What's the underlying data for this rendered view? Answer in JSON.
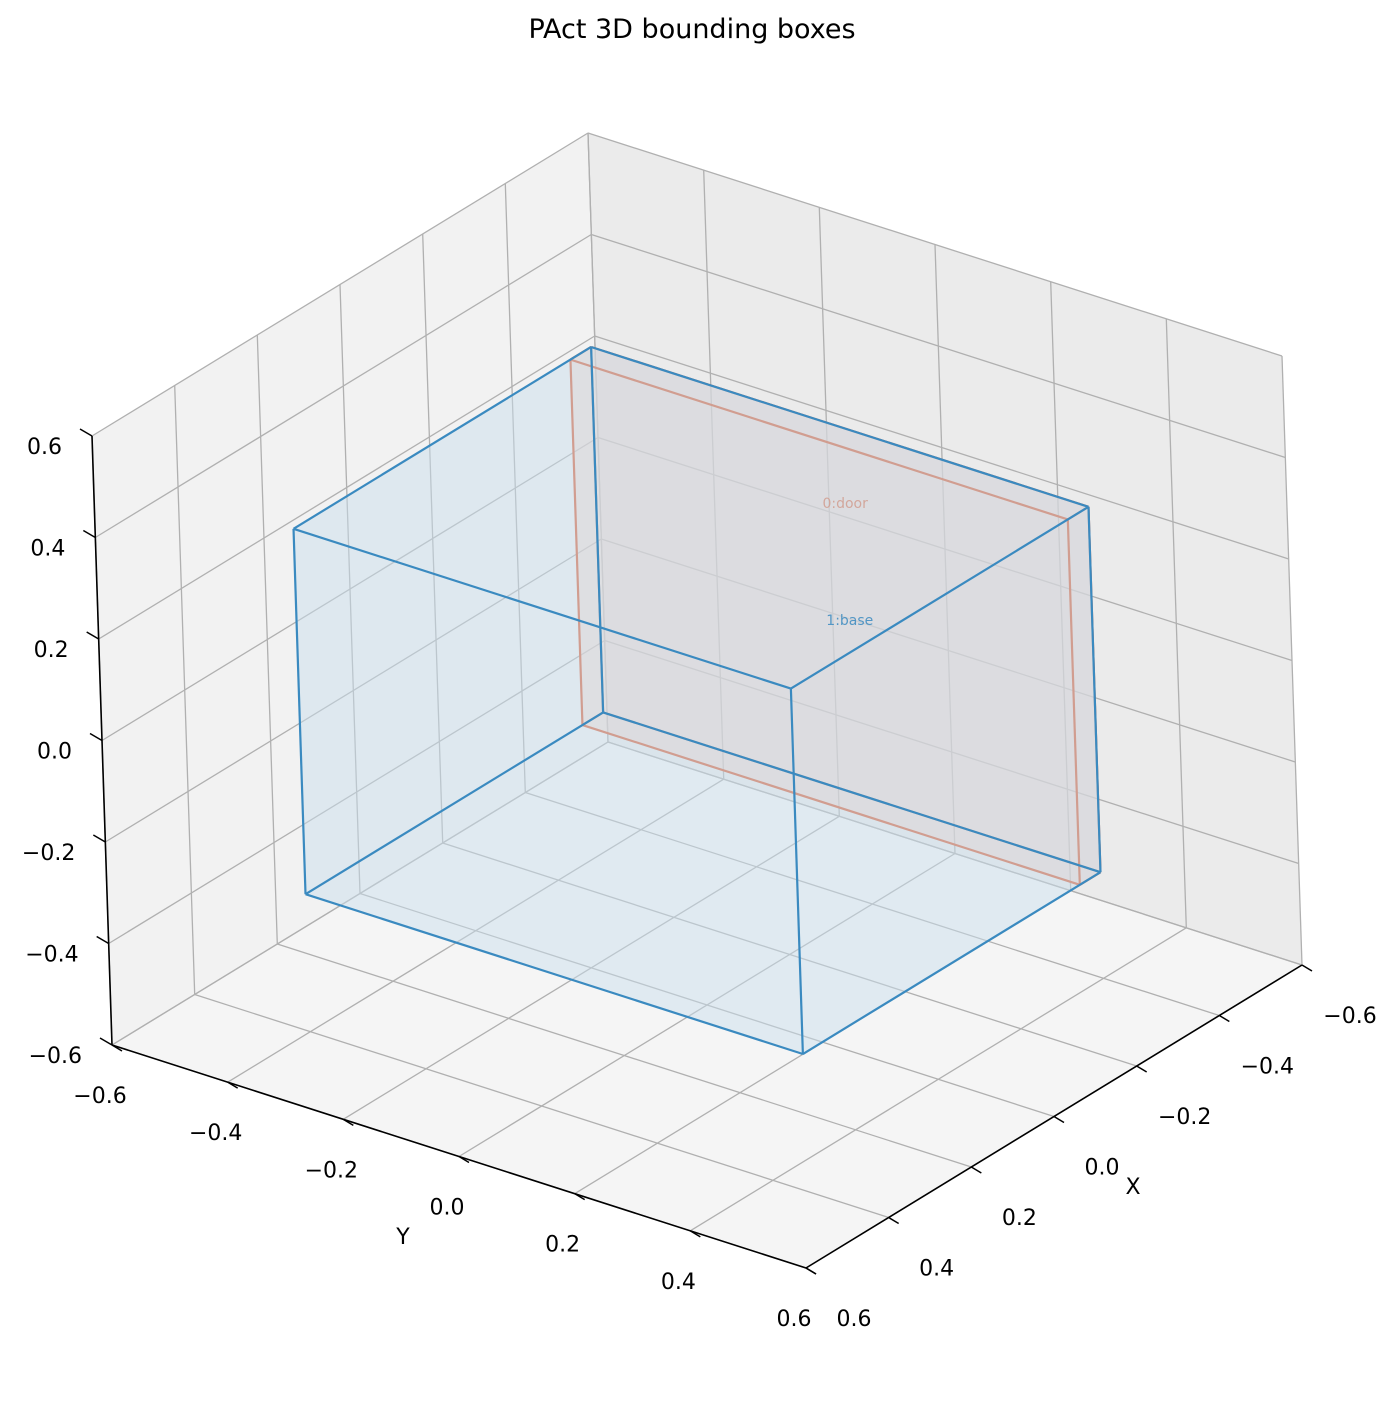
{
  "chart_data": {
    "type": "3d-box",
    "title": "PAct 3D bounding boxes",
    "xlabel": "X",
    "ylabel": "Y",
    "zlabel": "",
    "xlim": [
      -0.6,
      0.6
    ],
    "ylim": [
      -0.6,
      0.6
    ],
    "zlim": [
      -0.6,
      0.6
    ],
    "ticks": [
      -0.6,
      -0.4,
      -0.2,
      0.0,
      0.2,
      0.4,
      0.6
    ],
    "tick_labels": [
      "−0.6",
      "−0.4",
      "−0.2",
      "0.0",
      "0.2",
      "0.4",
      "0.6"
    ],
    "grid": true,
    "boxes": [
      {
        "name": "0:door",
        "color": "#d9623b",
        "fill": "#f2cbbd",
        "x": [
          -0.36,
          -0.31
        ],
        "y": [
          -0.43,
          0.43
        ],
        "z": [
          -0.36,
          0.36
        ]
      },
      {
        "name": "1:base",
        "color": "#3a8ac0",
        "fill": "#c8dfec",
        "x": [
          -0.36,
          0.36
        ],
        "y": [
          -0.43,
          0.43
        ],
        "z": [
          -0.36,
          0.36
        ]
      }
    ]
  }
}
